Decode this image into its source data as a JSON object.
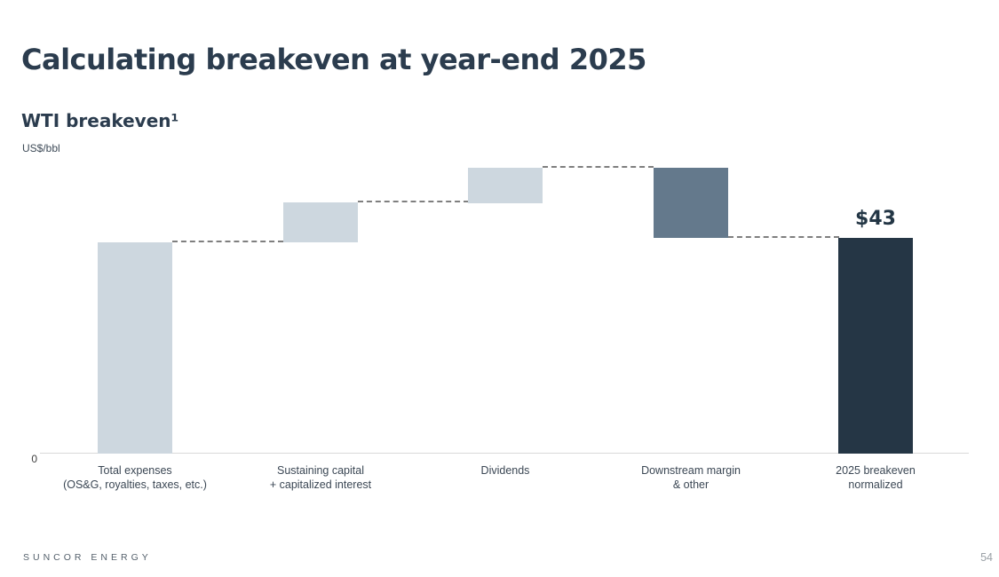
{
  "slide": {
    "title": "Calculating breakeven at year-end 2025",
    "footer_brand": "SUNCOR ENERGY",
    "page_number": "54"
  },
  "chart_data": {
    "type": "waterfall",
    "title": "WTI breakeven¹",
    "unit_label": "US$/bbl",
    "zero_tick_label": "0",
    "ylim": [
      0,
      58
    ],
    "total_data_label": "$43",
    "steps": [
      {
        "name": "total-expenses",
        "label_lines": [
          "Total expenses",
          "(OS&G, royalties, taxes, etc.)"
        ],
        "value": 42,
        "style": "light"
      },
      {
        "name": "sustaining-capital",
        "label_lines": [
          "Sustaining capital",
          "+ capitalized interest"
        ],
        "value": 8,
        "style": "light"
      },
      {
        "name": "dividends",
        "label_lines": [
          "Dividends"
        ],
        "value": 7,
        "style": "light"
      },
      {
        "name": "downstream-margin-and-other",
        "label_lines": [
          "Downstream margin",
          "& other"
        ],
        "value": -14,
        "style": "mid"
      },
      {
        "name": "2025-breakeven-normalized",
        "label_lines": [
          "2025 breakeven",
          "normalized"
        ],
        "value": 43,
        "style": "dark",
        "is_total": true,
        "data_label": "$43"
      }
    ],
    "colors": {
      "light": "#CDD7DF",
      "mid": "#64798C",
      "dark": "#253645",
      "dash": "#7F7F7F",
      "axis": "#D9D9D9"
    },
    "legend": null,
    "grid": false
  },
  "colors": {
    "title": "#2B3C4E",
    "footer": "#55616C",
    "page_number": "#9AA0A6"
  }
}
